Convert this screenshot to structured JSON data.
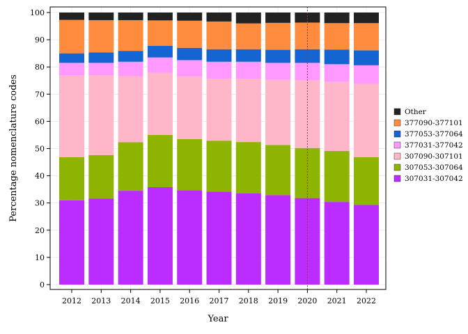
{
  "chart_data": {
    "type": "bar",
    "stacked": true,
    "title": "",
    "xlabel": "Year",
    "ylabel": "Percentage nomenclature codes",
    "ylim": [
      0,
      100
    ],
    "yticks": [
      0,
      10,
      20,
      30,
      40,
      50,
      60,
      70,
      80,
      90,
      100
    ],
    "grid": true,
    "legend_position": "right",
    "reference_line": {
      "x": "2020",
      "style": "dotted",
      "color": "#8B3A3A"
    },
    "categories": [
      "2012",
      "2013",
      "2014",
      "2015",
      "2016",
      "2017",
      "2018",
      "2019",
      "2020",
      "2021",
      "2022"
    ],
    "series": [
      {
        "name": "307031-307042",
        "color": "#BA2CFF",
        "values": [
          31.0,
          31.6,
          34.5,
          35.8,
          34.7,
          34.2,
          33.6,
          32.9,
          31.8,
          30.4,
          29.3
        ]
      },
      {
        "name": "307053-307064",
        "color": "#8CB400",
        "values": [
          15.8,
          16.0,
          17.8,
          19.2,
          18.8,
          18.7,
          18.8,
          18.4,
          18.4,
          18.7,
          17.5
        ]
      },
      {
        "name": "307090-307101",
        "color": "#FFB6C8",
        "values": [
          30.0,
          29.3,
          24.3,
          22.8,
          23.0,
          22.8,
          23.3,
          24.0,
          24.9,
          25.4,
          27.0
        ]
      },
      {
        "name": "377031-377042",
        "color": "#FF99FF",
        "values": [
          4.7,
          4.6,
          5.3,
          5.7,
          6.0,
          6.2,
          6.2,
          6.2,
          6.4,
          6.5,
          6.8
        ]
      },
      {
        "name": "377053-377064",
        "color": "#1464D2",
        "values": [
          3.5,
          3.8,
          4.0,
          4.3,
          4.5,
          4.6,
          4.6,
          4.8,
          5.0,
          5.4,
          5.5
        ]
      },
      {
        "name": "377090-377101",
        "color": "#FF8C3C",
        "values": [
          12.3,
          11.9,
          11.3,
          9.3,
          10.0,
          10.2,
          9.5,
          9.9,
          9.8,
          9.7,
          10.0
        ]
      },
      {
        "name": "Other",
        "color": "#222222",
        "values": [
          2.7,
          2.8,
          2.8,
          2.9,
          3.0,
          3.3,
          4.0,
          3.8,
          3.7,
          3.9,
          3.9
        ]
      }
    ]
  }
}
